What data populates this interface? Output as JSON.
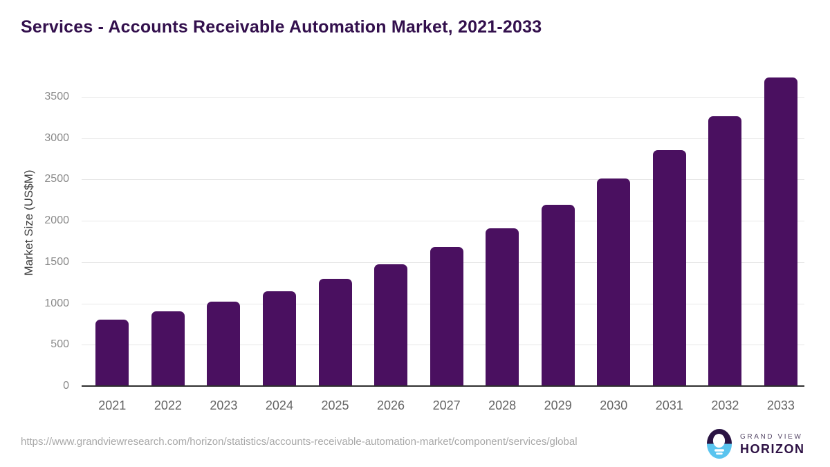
{
  "title": "Services - Accounts Receivable Automation Market, 2021-2033",
  "source_url": "https://www.grandviewresearch.com/horizon/statistics/accounts-receivable-automation-market/component/services/global",
  "logo": {
    "line1": "GRAND VIEW",
    "line2": "HORIZON"
  },
  "colors": {
    "bar": "#4a1060",
    "title": "#33104d",
    "grid": "#e7e7e7",
    "axis": "#2e2e2e",
    "ytick_label": "#8a8a8a",
    "xtick_label": "#646464",
    "url_text": "#a8a8a8",
    "logo_purple": "#2b1444",
    "logo_blue": "#5ac4ef"
  },
  "chart_data": {
    "type": "bar",
    "title": "Services - Accounts Receivable Automation Market, 2021-2033",
    "categories": [
      "2021",
      "2022",
      "2023",
      "2024",
      "2025",
      "2026",
      "2027",
      "2028",
      "2029",
      "2030",
      "2031",
      "2032",
      "2033"
    ],
    "values": [
      800,
      900,
      1020,
      1150,
      1300,
      1475,
      1680,
      1905,
      2190,
      2510,
      2855,
      3260,
      3735
    ],
    "xlabel": "",
    "ylabel": "Market Size (US$M)",
    "yticks": [
      0,
      500,
      1000,
      1500,
      2000,
      2500,
      3000,
      3500
    ],
    "ylim": [
      0,
      3750
    ],
    "grid": "horizontal",
    "legend": "none",
    "bar_color": "#4a1060"
  }
}
